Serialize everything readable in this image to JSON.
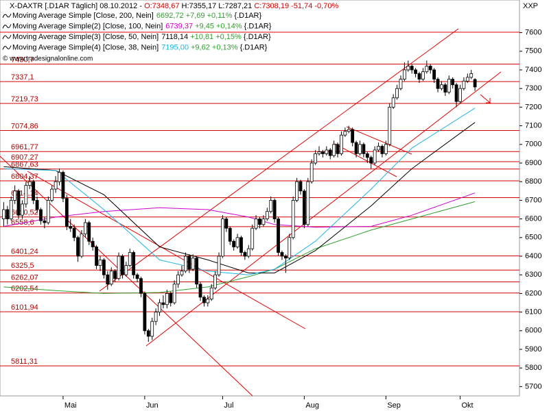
{
  "chart_data": {
    "type": "candlestick",
    "header": {
      "instrument": "X-DAXTR [.D1AR  Täglich] 08.10.2012 - ",
      "open": "O:7348,67",
      "hl": " H:7355,17 L:7287,21 ",
      "close": "C:7308,19 -51,74 -0,70%"
    },
    "copyright": "© www.tradesignalonline.com",
    "axis_title": "XXP",
    "ylim": [
      5650,
      7775
    ],
    "yticks": [
      5700,
      5800,
      5900,
      6000,
      6100,
      6200,
      6300,
      6400,
      6500,
      6600,
      6700,
      6800,
      6900,
      7000,
      7100,
      7200,
      7300,
      7400,
      7500,
      7600
    ],
    "xlim": [
      -1,
      139
    ],
    "xticks": [
      {
        "value": 16,
        "label": "Mai"
      },
      {
        "value": 38,
        "label": "Jun"
      },
      {
        "value": 59,
        "label": "Jul"
      },
      {
        "value": 81,
        "label": "Aug"
      },
      {
        "value": 103,
        "label": "Sep"
      },
      {
        "value": 123,
        "label": "Okt"
      }
    ],
    "up_color": "#ffffff",
    "down_color": "#000000",
    "level_color": "#d00000",
    "levels": [
      {
        "value": 7430.7,
        "label": "7430,7"
      },
      {
        "value": 7337.1,
        "label": "7337,1"
      },
      {
        "value": 7219.73,
        "label": "7219,73"
      },
      {
        "value": 7074.86,
        "label": "7074,86"
      },
      {
        "value": 6961.77,
        "label": "6961,77"
      },
      {
        "value": 6907.27,
        "label": "6907,27"
      },
      {
        "value": 6867.63,
        "label": "6867,63"
      },
      {
        "value": 6804.37,
        "label": "6804,37"
      },
      {
        "value": 6714.14,
        "label": "6714,14"
      },
      {
        "value": 6610.52,
        "label": "6610,52"
      },
      {
        "value": 6558.6,
        "label": "6558,6"
      },
      {
        "value": 6401.24,
        "label": "6401,24"
      },
      {
        "value": 6325.5,
        "label": "6325,5"
      },
      {
        "value": 6262.07,
        "label": "6262,07"
      },
      {
        "value": 6202.54,
        "label": "6202,54"
      },
      {
        "value": 6101.94,
        "label": "6101,94"
      },
      {
        "value": 5811.31,
        "label": "5811,31"
      }
    ],
    "candles": [
      [
        6600,
        6690,
        6560,
        6650
      ],
      [
        6650,
        6670,
        6570,
        6600
      ],
      [
        6600,
        6720,
        6590,
        6700
      ],
      [
        6700,
        6780,
        6680,
        6750
      ],
      [
        6750,
        6760,
        6600,
        6620
      ],
      [
        6620,
        6700,
        6600,
        6680
      ],
      [
        6680,
        6800,
        6660,
        6780
      ],
      [
        6780,
        6830,
        6760,
        6800
      ],
      [
        6800,
        6810,
        6680,
        6700
      ],
      [
        6700,
        6720,
        6630,
        6650
      ],
      [
        6650,
        6660,
        6570,
        6590
      ],
      [
        6590,
        6610,
        6550,
        6580
      ],
      [
        6580,
        6720,
        6570,
        6700
      ],
      [
        6700,
        6780,
        6690,
        6760
      ],
      [
        6760,
        6830,
        6740,
        6800
      ],
      [
        6800,
        6870,
        6780,
        6850
      ],
      [
        6850,
        6860,
        6690,
        6710
      ],
      [
        6710,
        6730,
        6540,
        6560
      ],
      [
        6560,
        6600,
        6530,
        6550
      ],
      [
        6550,
        6570,
        6480,
        6500
      ],
      [
        6500,
        6510,
        6370,
        6400
      ],
      [
        6400,
        6540,
        6390,
        6520
      ],
      [
        6520,
        6600,
        6500,
        6580
      ],
      [
        6580,
        6590,
        6460,
        6480
      ],
      [
        6480,
        6500,
        6430,
        6450
      ],
      [
        6450,
        6460,
        6330,
        6350
      ],
      [
        6350,
        6400,
        6320,
        6380
      ],
      [
        6380,
        6390,
        6280,
        6300
      ],
      [
        6300,
        6320,
        6220,
        6250
      ],
      [
        6250,
        6340,
        6240,
        6320
      ],
      [
        6320,
        6330,
        6260,
        6280
      ],
      [
        6280,
        6420,
        6270,
        6400
      ],
      [
        6400,
        6410,
        6280,
        6300
      ],
      [
        6300,
        6370,
        6290,
        6350
      ],
      [
        6350,
        6440,
        6340,
        6420
      ],
      [
        6420,
        6430,
        6280,
        6300
      ],
      [
        6300,
        6310,
        6260,
        6280
      ],
      [
        6280,
        6290,
        6180,
        6200
      ],
      [
        6200,
        6210,
        5980,
        6000
      ],
      [
        6000,
        6010,
        5940,
        5970
      ],
      [
        5970,
        6070,
        5950,
        6050
      ],
      [
        6050,
        6120,
        6030,
        6100
      ],
      [
        6100,
        6170,
        6080,
        6150
      ],
      [
        6150,
        6190,
        6120,
        6140
      ],
      [
        6140,
        6220,
        6120,
        6200
      ],
      [
        6200,
        6210,
        6130,
        6150
      ],
      [
        6150,
        6270,
        6140,
        6250
      ],
      [
        6250,
        6320,
        6230,
        6300
      ],
      [
        6300,
        6350,
        6290,
        6320
      ],
      [
        6320,
        6420,
        6310,
        6400
      ],
      [
        6400,
        6410,
        6310,
        6330
      ],
      [
        6330,
        6410,
        6320,
        6390
      ],
      [
        6390,
        6400,
        6230,
        6250
      ],
      [
        6250,
        6260,
        6160,
        6180
      ],
      [
        6180,
        6190,
        6130,
        6150
      ],
      [
        6150,
        6190,
        6130,
        6170
      ],
      [
        6170,
        6250,
        6160,
        6230
      ],
      [
        6230,
        6320,
        6220,
        6300
      ],
      [
        6300,
        6420,
        6290,
        6400
      ],
      [
        6400,
        6620,
        6390,
        6600
      ],
      [
        6600,
        6610,
        6530,
        6550
      ],
      [
        6550,
        6560,
        6460,
        6480
      ],
      [
        6480,
        6490,
        6430,
        6450
      ],
      [
        6450,
        6520,
        6440,
        6500
      ],
      [
        6500,
        6510,
        6400,
        6420
      ],
      [
        6420,
        6430,
        6380,
        6400
      ],
      [
        6400,
        6460,
        6390,
        6440
      ],
      [
        6440,
        6570,
        6430,
        6550
      ],
      [
        6550,
        6620,
        6540,
        6600
      ],
      [
        6600,
        6610,
        6550,
        6570
      ],
      [
        6570,
        6620,
        6560,
        6600
      ],
      [
        6600,
        6660,
        6590,
        6640
      ],
      [
        6640,
        6720,
        6630,
        6700
      ],
      [
        6700,
        6710,
        6580,
        6600
      ],
      [
        6600,
        6610,
        6400,
        6420
      ],
      [
        6420,
        6430,
        6380,
        6400
      ],
      [
        6400,
        6410,
        6310,
        6390
      ],
      [
        6390,
        6520,
        6380,
        6500
      ],
      [
        6500,
        6720,
        6490,
        6700
      ],
      [
        6700,
        6820,
        6690,
        6800
      ],
      [
        6800,
        6810,
        6730,
        6750
      ],
      [
        6750,
        6760,
        6550,
        6570
      ],
      [
        6570,
        6820,
        6560,
        6800
      ],
      [
        6800,
        6920,
        6790,
        6900
      ],
      [
        6900,
        6970,
        6890,
        6950
      ],
      [
        6950,
        6990,
        6940,
        6960
      ],
      [
        6960,
        6970,
        6930,
        6950
      ],
      [
        6950,
        6990,
        6940,
        6970
      ],
      [
        6970,
        6980,
        6920,
        6940
      ],
      [
        6940,
        7020,
        6930,
        7000
      ],
      [
        7000,
        7010,
        6930,
        6950
      ],
      [
        6950,
        7070,
        6940,
        7050
      ],
      [
        7050,
        7090,
        7040,
        7070
      ],
      [
        7070,
        7100,
        7060,
        7080
      ],
      [
        7080,
        7090,
        6990,
        7010
      ],
      [
        7010,
        7020,
        6930,
        6950
      ],
      [
        6950,
        7020,
        6940,
        7000
      ],
      [
        7000,
        7010,
        6930,
        6950
      ],
      [
        6950,
        6960,
        6900,
        6930
      ],
      [
        6930,
        6940,
        6870,
        6900
      ],
      [
        6900,
        6990,
        6890,
        6970
      ],
      [
        6970,
        7010,
        6960,
        6990
      ],
      [
        6990,
        7000,
        6930,
        6950
      ],
      [
        6950,
        7020,
        6940,
        7000
      ],
      [
        7000,
        7220,
        6990,
        7200
      ],
      [
        7200,
        7270,
        7190,
        7250
      ],
      [
        7250,
        7320,
        7240,
        7300
      ],
      [
        7300,
        7370,
        7290,
        7350
      ],
      [
        7350,
        7440,
        7340,
        7400
      ],
      [
        7400,
        7450,
        7390,
        7420
      ],
      [
        7420,
        7430,
        7380,
        7400
      ],
      [
        7400,
        7410,
        7360,
        7380
      ],
      [
        7380,
        7390,
        7330,
        7350
      ],
      [
        7350,
        7410,
        7340,
        7390
      ],
      [
        7390,
        7450,
        7380,
        7420
      ],
      [
        7420,
        7430,
        7380,
        7400
      ],
      [
        7400,
        7410,
        7330,
        7350
      ],
      [
        7350,
        7360,
        7280,
        7300
      ],
      [
        7300,
        7340,
        7290,
        7320
      ],
      [
        7320,
        7330,
        7260,
        7280
      ],
      [
        7280,
        7370,
        7270,
        7350
      ],
      [
        7350,
        7360,
        7300,
        7320
      ],
      [
        7320,
        7330,
        7200,
        7230
      ],
      [
        7230,
        7320,
        7220,
        7300
      ],
      [
        7300,
        7360,
        7290,
        7340
      ],
      [
        7340,
        7380,
        7330,
        7360
      ],
      [
        7360,
        7400,
        7350,
        7380
      ],
      [
        7348.67,
        7355.17,
        7287.21,
        7308.19
      ]
    ],
    "series": [
      {
        "name": "Moving Average Simple [Close, 200, Nein]",
        "color": "#2ca02c",
        "last_label": "6692,72",
        "change": " +7,69 +0,11%",
        "suffix": " {.D1AR}",
        "x": [
          0,
          14,
          27,
          42,
          55,
          66,
          73,
          84,
          99,
          110,
          127
        ],
        "values": [
          6235,
          6215,
          6200,
          6205,
          6235,
          6290,
          6330,
          6440,
          6540,
          6600,
          6692.72
        ]
      },
      {
        "name": "Moving Average Simple(2) [Close, 100, Nein]",
        "color": "#cc00cc",
        "last_label": "6739,37",
        "change": " +9,45 +0,14%",
        "suffix": " {.D1AR}",
        "x": [
          0,
          14,
          27,
          42,
          55,
          66,
          73,
          84,
          99,
          110,
          127
        ],
        "values": [
          6560,
          6610,
          6640,
          6660,
          6650,
          6610,
          6570,
          6555,
          6560,
          6620,
          6739.37
        ]
      },
      {
        "name": "Moving Average Simple(3) [Close, 50, Nein]",
        "color": "#000000",
        "last_label": "7118,14",
        "change": " +10,81 +0,15%",
        "suffix": " {.D1AR}",
        "x": [
          0,
          14,
          27,
          42,
          55,
          66,
          73,
          84,
          99,
          110,
          127
        ],
        "values": [
          6880,
          6860,
          6730,
          6450,
          6380,
          6310,
          6310,
          6430,
          6670,
          6870,
          7118.14
        ]
      },
      {
        "name": "Moving Average Simple(4) [Close, 38, Nein]",
        "color": "#1fb4e6",
        "last_label": "7195,00",
        "change": " +9,62 +0,13%",
        "suffix": " {.D1AR}",
        "x": [
          0,
          14,
          27,
          42,
          55,
          66,
          73,
          84,
          99,
          110,
          127
        ],
        "values": [
          6870,
          6860,
          6650,
          6380,
          6320,
          6300,
          6330,
          6480,
          6760,
          6980,
          7195
        ]
      }
    ]
  }
}
